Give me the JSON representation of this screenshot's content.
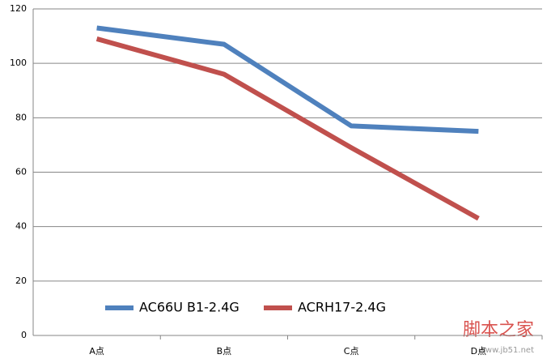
{
  "chart_data": {
    "type": "line",
    "categories": [
      "A点",
      "B点",
      "C点",
      "D点"
    ],
    "series": [
      {
        "name": "AC66U B1-2.4G",
        "color": "#4f81bd",
        "values": [
          113,
          107,
          77,
          75
        ]
      },
      {
        "name": "ACRH17-2.4G",
        "color": "#c0504d",
        "values": [
          109,
          96,
          69,
          43
        ]
      }
    ],
    "ylim": [
      0,
      120
    ],
    "yticks": [
      0,
      20,
      40,
      60,
      80,
      100,
      120
    ],
    "grid": true,
    "legend": "bottom-left",
    "watermark": "脚本之家",
    "watermark_url": "www.jb51.net"
  }
}
